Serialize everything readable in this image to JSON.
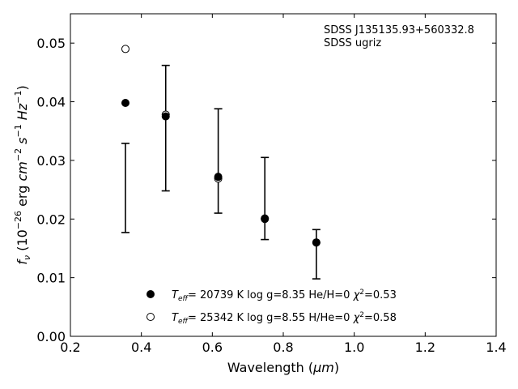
{
  "chart_data": {
    "type": "scatter",
    "xlabel_prefix": "Wavelength (",
    "xlabel_unit": "μm",
    "xlabel_suffix": ")",
    "ylabel_parts": {
      "f": "f",
      "nu": "ν",
      "open": " (10",
      "exp": "−26",
      "erg": " erg ",
      "cm": "cm",
      "cm_exp": "−2",
      "s": " s",
      "s_exp": "−1",
      "hz": " Hz",
      "hz_exp": "−1",
      "close": ")"
    },
    "xlim": [
      0.2,
      1.4
    ],
    "ylim": [
      0.0,
      0.055
    ],
    "x_ticks": [
      "0.2",
      "0.4",
      "0.6",
      "0.8",
      "1.0",
      "1.2",
      "1.4"
    ],
    "y_ticks": [
      "0.00",
      "0.01",
      "0.02",
      "0.03",
      "0.04",
      "0.05"
    ],
    "grid": false,
    "annotation": [
      "SDSS J135135.93+560332.8",
      "SDSS ugriz"
    ],
    "observed": {
      "x": [
        0.3551,
        0.4686,
        0.6166,
        0.748,
        0.8932
      ],
      "y": [
        0.0253,
        0.0355,
        0.0299,
        0.0235,
        0.014
      ],
      "yerr": [
        0.0076,
        0.0107,
        0.0089,
        0.007,
        0.0042
      ]
    },
    "series": [
      {
        "marker": "filled-circle",
        "x": [
          0.3551,
          0.4686,
          0.6166,
          0.748,
          0.8932
        ],
        "y": [
          0.0398,
          0.0375,
          0.0272,
          0.0201,
          0.016
        ],
        "legend": {
          "t": "T",
          "eff": "eff",
          "rest": "= 20739 K  log g=8.35  He/H=0  ",
          "chi": "χ",
          "chi_exp": "2",
          "chi_val": "=0.53"
        }
      },
      {
        "marker": "open-circle",
        "x": [
          0.3551,
          0.4686,
          0.6166,
          0.748,
          0.8932
        ],
        "y": [
          0.049,
          0.0378,
          0.0269,
          0.02,
          0.016
        ],
        "legend": {
          "t": "T",
          "eff": "eff",
          "rest": "= 25342 K  log g=8.55  H/He=0  ",
          "chi": "χ",
          "chi_exp": "2",
          "chi_val": "=0.58"
        }
      }
    ]
  }
}
